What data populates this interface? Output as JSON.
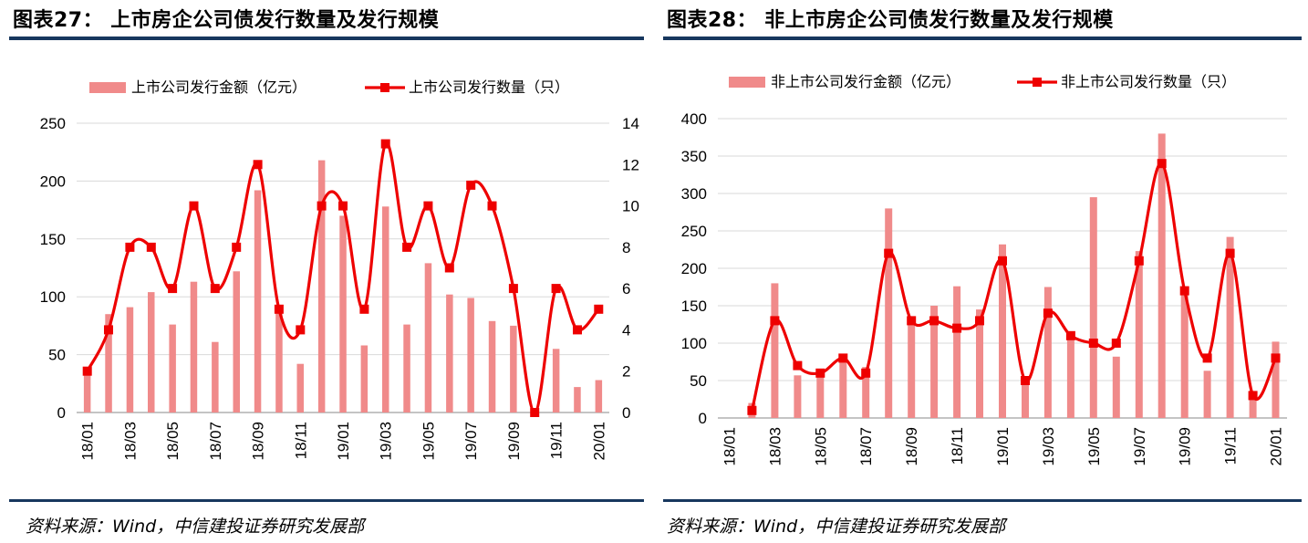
{
  "colors": {
    "bar": "#f08a8a",
    "line": "#ee0000",
    "grid": "#d9d9d9",
    "rule": "#17375e"
  },
  "source": "资料来源：Wind，中信建投证券研究发展部",
  "chart_data": [
    {
      "type": "bar+line",
      "title": "图表27： 上市房企公司债发行数量及发行规模",
      "categories": [
        "18/01",
        "18/02",
        "18/03",
        "18/04",
        "18/05",
        "18/06",
        "18/07",
        "18/08",
        "18/09",
        "18/10",
        "18/11",
        "18/12",
        "19/01",
        "19/02",
        "19/03",
        "19/04",
        "19/05",
        "19/06",
        "19/07",
        "19/08",
        "19/09",
        "19/10",
        "19/11",
        "19/12",
        "20/01"
      ],
      "x_tick_labels": [
        "18/01",
        "18/03",
        "18/05",
        "18/07",
        "18/09",
        "18/11",
        "19/01",
        "19/03",
        "19/05",
        "19/07",
        "19/09",
        "19/11",
        "20/01"
      ],
      "series": [
        {
          "name": "上市公司发行金额（亿元）",
          "type": "bar",
          "axis": "left",
          "values": [
            35,
            85,
            91,
            104,
            76,
            113,
            61,
            122,
            192,
            89,
            42,
            218,
            170,
            58,
            178,
            76,
            129,
            102,
            99,
            79,
            75,
            0,
            55,
            22,
            28
          ]
        },
        {
          "name": "上市公司发行数量（只）",
          "type": "line",
          "axis": "right",
          "values": [
            2,
            4,
            8,
            8,
            6,
            10,
            6,
            8,
            12,
            5,
            4,
            10,
            10,
            5,
            13,
            8,
            10,
            7,
            11,
            10,
            6,
            0,
            6,
            4,
            5
          ]
        }
      ],
      "y_left": {
        "min": 0,
        "max": 250,
        "step": 50,
        "ticks": [
          "0",
          "50",
          "100",
          "150",
          "200",
          "250"
        ]
      },
      "y_right": {
        "min": 0,
        "max": 14,
        "step": 2,
        "ticks": [
          "0",
          "2",
          "4",
          "6",
          "8",
          "10",
          "12",
          "14"
        ]
      },
      "grid": true,
      "legend": "top"
    },
    {
      "type": "bar+line",
      "title": "图表28： 非上市房企公司债发行数量及发行规模",
      "categories": [
        "18/01",
        "18/02",
        "18/03",
        "18/04",
        "18/05",
        "18/06",
        "18/07",
        "18/08",
        "18/09",
        "18/10",
        "18/11",
        "18/12",
        "19/01",
        "19/02",
        "19/03",
        "19/04",
        "19/05",
        "19/06",
        "19/07",
        "19/08",
        "19/09",
        "19/10",
        "19/11",
        "19/12",
        "20/01"
      ],
      "x_tick_labels": [
        "18/01",
        "18/03",
        "18/05",
        "18/07",
        "18/09",
        "18/11",
        "19/01",
        "19/03",
        "19/05",
        "19/07",
        "19/09",
        "19/11",
        "20/01"
      ],
      "series": [
        {
          "name": "非上市公司发行金额（亿元）",
          "type": "bar",
          "axis": "left",
          "values": [
            0,
            20,
            180,
            57,
            60,
            80,
            68,
            280,
            135,
            150,
            176,
            145,
            232,
            45,
            175,
            110,
            295,
            82,
            223,
            380,
            170,
            63,
            242,
            25,
            102
          ]
        },
        {
          "name": "非上市公司发行数量（只）",
          "type": "line",
          "axis": "right",
          "values": [
            null,
            1,
            13,
            7,
            6,
            8,
            6,
            22,
            13,
            13,
            12,
            13,
            21,
            5,
            14,
            11,
            10,
            10,
            21,
            34,
            17,
            8,
            22,
            3,
            8
          ]
        }
      ],
      "y_left": {
        "min": 0,
        "max": 400,
        "step": 50,
        "ticks": [
          "0",
          "50",
          "100",
          "150",
          "200",
          "250",
          "300",
          "350",
          "400"
        ]
      },
      "y_right": {
        "min": 0,
        "max": 40,
        "step": 10
      },
      "grid": true,
      "legend": "top"
    }
  ]
}
